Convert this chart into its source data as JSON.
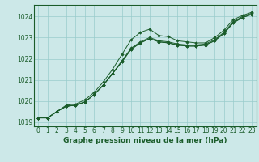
{
  "title": "Graphe pression niveau de la mer (hPa)",
  "bg_color": "#cce8e8",
  "grid_color": "#99cccc",
  "line_color": "#1a5c2a",
  "marker_color": "#1a5c2a",
  "x_values": [
    0,
    1,
    2,
    3,
    4,
    5,
    6,
    7,
    8,
    9,
    10,
    11,
    12,
    13,
    14,
    15,
    16,
    17,
    18,
    19,
    20,
    21,
    22,
    23
  ],
  "series": [
    [
      1019.2,
      1019.2,
      1019.5,
      1019.8,
      1019.85,
      1020.05,
      1020.4,
      1020.9,
      1021.5,
      1022.2,
      1022.9,
      1023.25,
      1023.4,
      1023.1,
      1023.05,
      1022.85,
      1022.8,
      1022.75,
      1022.75,
      1023.0,
      1023.35,
      1023.85,
      1024.05,
      1024.2
    ],
    [
      1019.2,
      1019.2,
      1019.5,
      1019.75,
      1019.8,
      1019.95,
      1020.3,
      1020.75,
      1021.3,
      1021.9,
      1022.5,
      1022.8,
      1023.0,
      1022.85,
      1022.8,
      1022.7,
      1022.65,
      1022.65,
      1022.7,
      1022.9,
      1023.25,
      1023.75,
      1024.0,
      1024.15
    ],
    [
      1019.2,
      1019.2,
      1019.5,
      1019.75,
      1019.8,
      1019.95,
      1020.3,
      1020.75,
      1021.3,
      1021.85,
      1022.45,
      1022.75,
      1022.95,
      1022.8,
      1022.75,
      1022.65,
      1022.6,
      1022.6,
      1022.65,
      1022.85,
      1023.2,
      1023.7,
      1023.95,
      1024.1
    ],
    [
      1019.2,
      1019.2,
      1019.5,
      1019.75,
      1019.8,
      1019.95,
      1020.3,
      1020.75,
      1021.3,
      1021.85,
      1022.45,
      1022.75,
      1022.95,
      1022.8,
      1022.75,
      1022.65,
      1022.6,
      1022.6,
      1022.65,
      1022.85,
      1023.2,
      1023.7,
      1023.95,
      1024.1
    ]
  ],
  "ylim": [
    1018.8,
    1024.55
  ],
  "yticks": [
    1019,
    1020,
    1021,
    1022,
    1023,
    1024
  ],
  "xlim": [
    -0.5,
    23.5
  ],
  "xticks": [
    0,
    1,
    2,
    3,
    4,
    5,
    6,
    7,
    8,
    9,
    10,
    11,
    12,
    13,
    14,
    15,
    16,
    17,
    18,
    19,
    20,
    21,
    22,
    23
  ],
  "tick_fontsize": 5.5,
  "title_fontsize": 6.5,
  "title_color": "#1a5c2a",
  "tick_color": "#1a5c2a",
  "axis_color": "#1a5c2a",
  "figsize": [
    3.2,
    2.0
  ],
  "dpi": 100
}
